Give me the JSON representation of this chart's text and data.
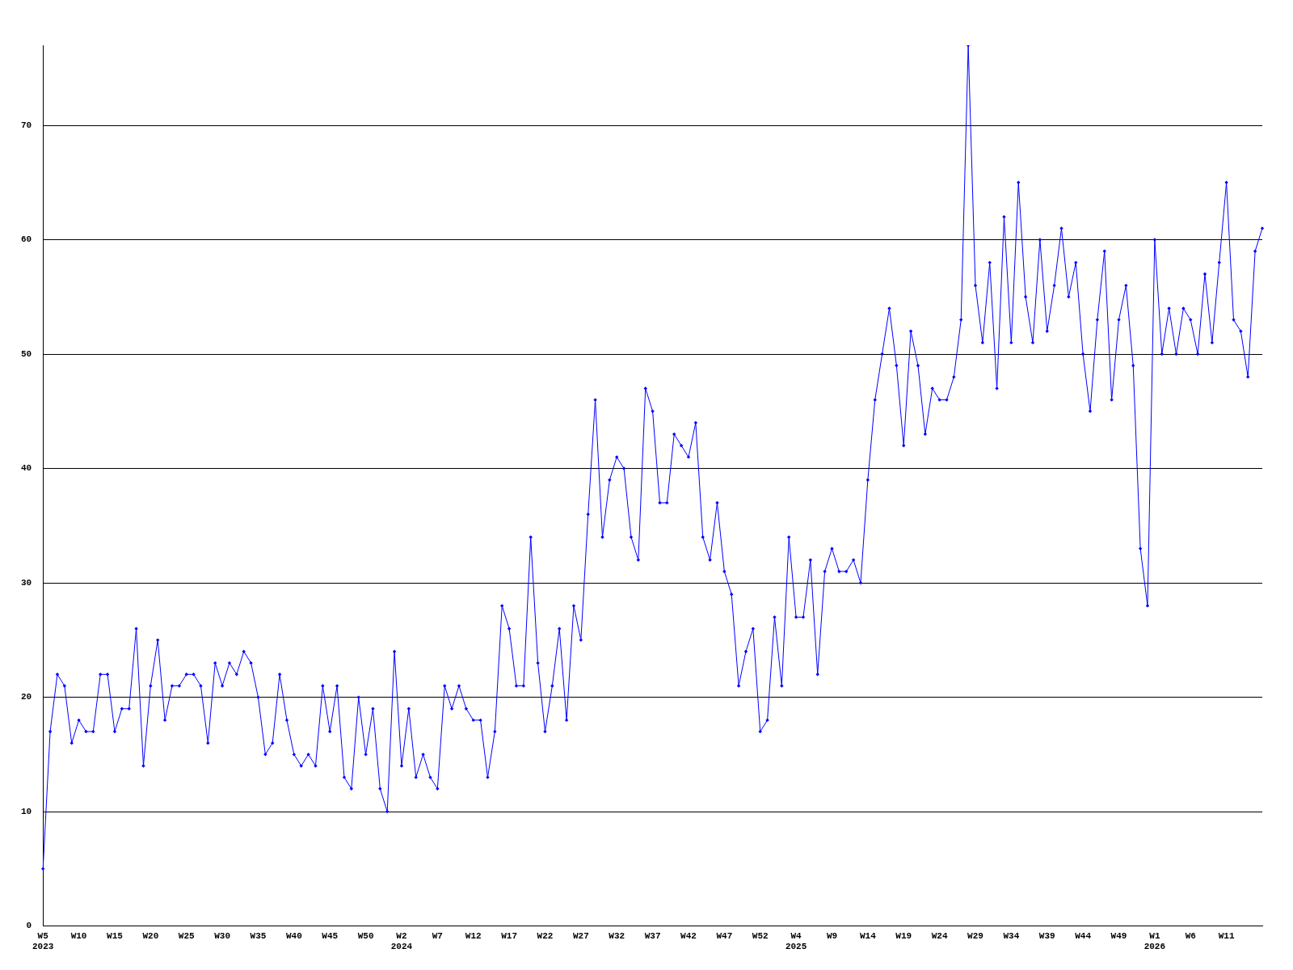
{
  "chart_data": {
    "type": "line",
    "categories": [
      "W5\n2023",
      null,
      null,
      null,
      null,
      "W10",
      null,
      null,
      null,
      null,
      "W15",
      null,
      null,
      null,
      null,
      "W20",
      null,
      null,
      null,
      null,
      "W25",
      null,
      null,
      null,
      null,
      "W30",
      null,
      null,
      null,
      null,
      "W35",
      null,
      null,
      null,
      null,
      "W40",
      null,
      null,
      null,
      null,
      "W45",
      null,
      null,
      null,
      null,
      "W50",
      null,
      null,
      null,
      null,
      "W2\n2024",
      null,
      null,
      null,
      null,
      "W7",
      null,
      null,
      null,
      null,
      "W12",
      null,
      null,
      null,
      null,
      "W17",
      null,
      null,
      null,
      null,
      "W22",
      null,
      null,
      null,
      null,
      "W27",
      null,
      null,
      null,
      null,
      "W32",
      null,
      null,
      null,
      null,
      "W37",
      null,
      null,
      null,
      null,
      "W42",
      null,
      null,
      null,
      null,
      "W47",
      null,
      null,
      null,
      null,
      "W52",
      null,
      null,
      null,
      null,
      "W4\n2025",
      null,
      null,
      null,
      null,
      "W9",
      null,
      null,
      null,
      null,
      "W14",
      null,
      null,
      null,
      null,
      "W19",
      null,
      null,
      null,
      null,
      "W24",
      null,
      null,
      null,
      null,
      "W29",
      null,
      null,
      null,
      null,
      "W34",
      null,
      null,
      null,
      null,
      "W39",
      null,
      null,
      null,
      null,
      "W44",
      null,
      null,
      null,
      null,
      "W49",
      null,
      null,
      null,
      null,
      "W1\n2026",
      null,
      null,
      null,
      null,
      "W6",
      null,
      null,
      null,
      null,
      "W11",
      null,
      null,
      null,
      null,
      null
    ],
    "values": [
      5,
      17,
      22,
      21,
      16,
      18,
      17,
      17,
      22,
      22,
      17,
      19,
      19,
      26,
      14,
      21,
      25,
      18,
      21,
      21,
      22,
      22,
      21,
      16,
      23,
      21,
      23,
      22,
      24,
      23,
      20,
      15,
      16,
      22,
      18,
      15,
      14,
      15,
      14,
      21,
      17,
      21,
      13,
      12,
      20,
      15,
      19,
      12,
      10,
      24,
      14,
      19,
      13,
      15,
      13,
      12,
      21,
      19,
      21,
      19,
      18,
      18,
      13,
      17,
      28,
      26,
      21,
      21,
      34,
      23,
      17,
      21,
      26,
      18,
      28,
      25,
      36,
      46,
      34,
      39,
      41,
      40,
      34,
      32,
      47,
      45,
      37,
      37,
      43,
      42,
      41,
      44,
      34,
      32,
      37,
      31,
      29,
      21,
      24,
      26,
      17,
      18,
      27,
      21,
      34,
      27,
      27,
      32,
      22,
      31,
      33,
      31,
      31,
      32,
      30,
      39,
      46,
      50,
      54,
      49,
      42,
      52,
      49,
      43,
      47,
      46,
      46,
      48,
      53,
      77,
      56,
      51,
      58,
      47,
      62,
      51,
      65,
      55,
      51,
      60,
      52,
      56,
      61,
      55,
      58,
      50,
      45,
      53,
      59,
      46,
      53,
      56,
      49,
      33,
      28,
      60,
      50,
      54,
      50,
      54,
      53,
      50,
      57,
      51,
      58,
      65,
      53,
      52,
      48,
      59,
      61
    ],
    "color": "#0000ff",
    "ylim": [
      0,
      77
    ],
    "yticks": [
      0,
      10,
      20,
      30,
      40,
      50,
      60,
      70
    ],
    "grid": "y",
    "marker": "diamond",
    "line_style": "solid"
  }
}
